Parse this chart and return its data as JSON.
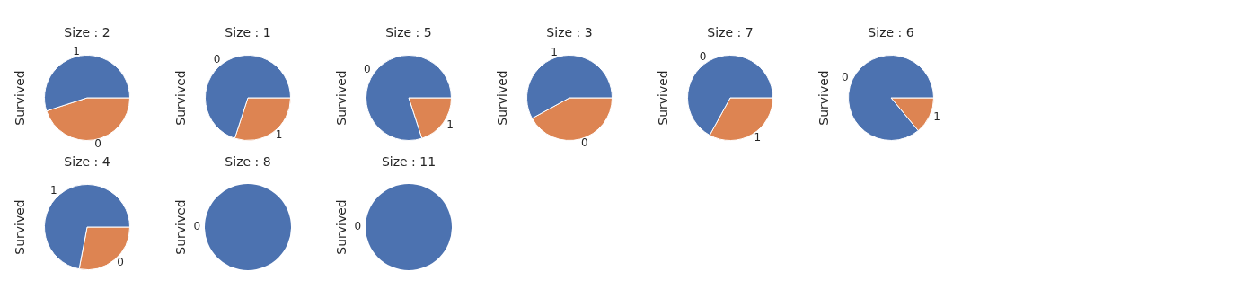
{
  "chart_data": [
    {
      "type": "pie",
      "title": "Size : 2",
      "ylabel": "Survived",
      "categories": [
        "1",
        "0"
      ],
      "values": [
        55,
        45
      ],
      "colors": [
        "#4c72b0",
        "#dd8452"
      ]
    },
    {
      "type": "pie",
      "title": "Size : 1",
      "ylabel": "Survived",
      "categories": [
        "0",
        "1"
      ],
      "values": [
        70,
        30
      ],
      "colors": [
        "#4c72b0",
        "#dd8452"
      ]
    },
    {
      "type": "pie",
      "title": "Size : 5",
      "ylabel": "Survived",
      "categories": [
        "0",
        "1"
      ],
      "values": [
        80,
        20
      ],
      "colors": [
        "#4c72b0",
        "#dd8452"
      ]
    },
    {
      "type": "pie",
      "title": "Size : 3",
      "ylabel": "Survived",
      "categories": [
        "1",
        "0"
      ],
      "values": [
        58,
        42
      ],
      "colors": [
        "#4c72b0",
        "#dd8452"
      ]
    },
    {
      "type": "pie",
      "title": "Size : 7",
      "ylabel": "Survived",
      "categories": [
        "0",
        "1"
      ],
      "values": [
        67,
        33
      ],
      "colors": [
        "#4c72b0",
        "#dd8452"
      ]
    },
    {
      "type": "pie",
      "title": "Size : 6",
      "ylabel": "Survived",
      "categories": [
        "0",
        "1"
      ],
      "values": [
        86,
        14
      ],
      "colors": [
        "#4c72b0",
        "#dd8452"
      ]
    },
    {
      "type": "pie",
      "title": "Size : 4",
      "ylabel": "Survived",
      "categories": [
        "1",
        "0"
      ],
      "values": [
        72,
        28
      ],
      "colors": [
        "#4c72b0",
        "#dd8452"
      ]
    },
    {
      "type": "pie",
      "title": "Size : 8",
      "ylabel": "Survived",
      "categories": [
        "0"
      ],
      "values": [
        100
      ],
      "colors": [
        "#4c72b0"
      ]
    },
    {
      "type": "pie",
      "title": "Size : 11",
      "ylabel": "Survived",
      "categories": [
        "0"
      ],
      "values": [
        100
      ],
      "colors": [
        "#4c72b0"
      ]
    }
  ]
}
